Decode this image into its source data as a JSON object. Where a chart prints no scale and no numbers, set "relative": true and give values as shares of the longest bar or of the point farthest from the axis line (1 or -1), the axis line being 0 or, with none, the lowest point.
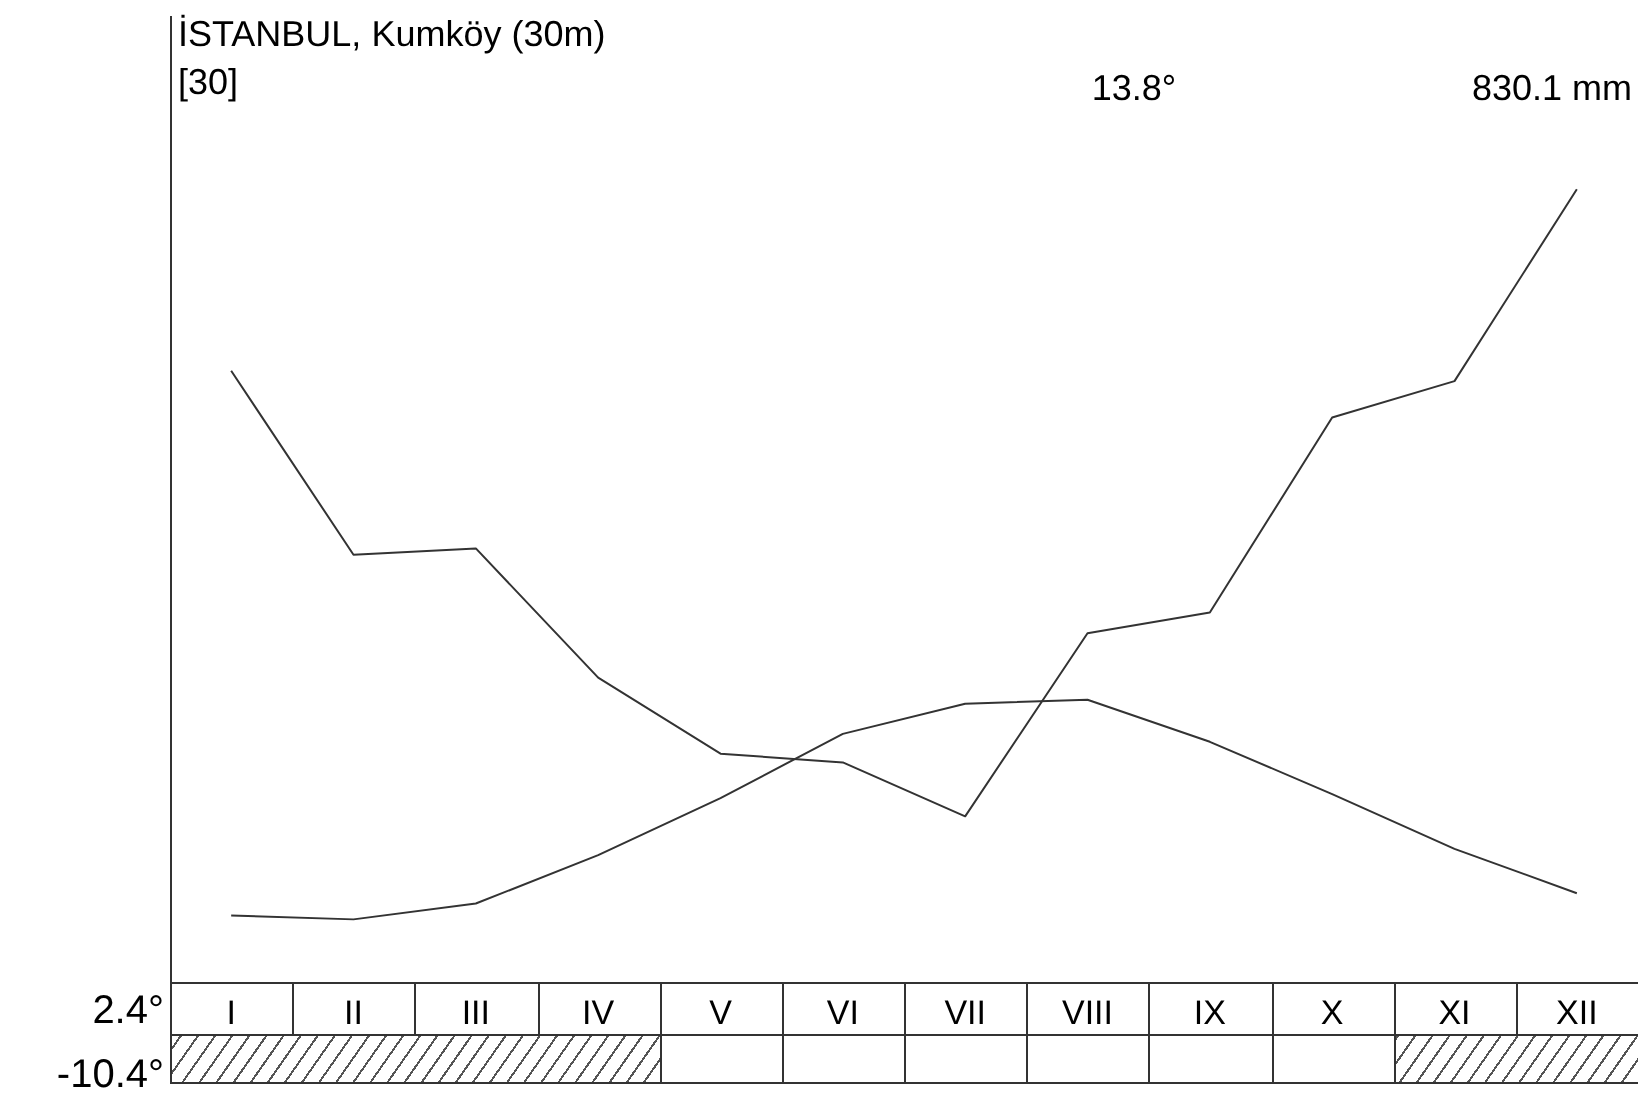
{
  "chart_data": {
    "type": "line",
    "title": "İSTANBUL, Kumköy (30m)",
    "subtitle": "[30]",
    "relative": true,
    "legend": false,
    "grid": false,
    "marker": "none",
    "line_style": "solid",
    "categories": [
      "I",
      "II",
      "III",
      "IV",
      "V",
      "VI",
      "VII",
      "VIII",
      "IX",
      "X",
      "XI",
      "XII"
    ],
    "series": [
      {
        "color": "#333333",
        "values": [
          0.084,
          0.079,
          0.099,
          0.16,
          0.232,
          0.313,
          0.351,
          0.356,
          0.303,
          0.237,
          0.168,
          0.112
        ]
      },
      {
        "color": "#333333",
        "values": [
          0.771,
          0.539,
          0.547,
          0.384,
          0.288,
          0.277,
          0.209,
          0.44,
          0.466,
          0.712,
          0.758,
          1
        ]
      }
    ],
    "annotations": [
      "13.8°",
      "830.1 mm",
      "2.4°",
      "-10.4°"
    ]
  }
}
